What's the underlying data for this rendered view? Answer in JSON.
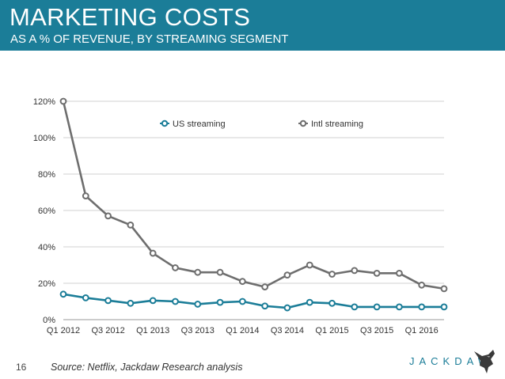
{
  "header": {
    "title": "MARKETING COSTS",
    "subtitle": "AS A % OF REVENUE, BY STREAMING SEGMENT"
  },
  "footer": {
    "page_number": "16",
    "source": "Source: Netflix, Jackdaw Research analysis",
    "logo_text": "JACKDAW"
  },
  "colors": {
    "banner": "#1b7d98",
    "us_series": "#1b7d98",
    "intl_series": "#6e6e6e",
    "grid": "#d0d0d0"
  },
  "chart_data": {
    "type": "line",
    "title": "",
    "xlabel": "",
    "ylabel": "",
    "ylim": [
      0,
      120
    ],
    "yticks": [
      0,
      20,
      40,
      60,
      80,
      100,
      120
    ],
    "ytick_labels": [
      "0%",
      "20%",
      "40%",
      "60%",
      "80%",
      "100%",
      "120%"
    ],
    "categories": [
      "Q1 2012",
      "Q2 2012",
      "Q3 2012",
      "Q4 2012",
      "Q1 2013",
      "Q2 2013",
      "Q3 2013",
      "Q4 2013",
      "Q1 2014",
      "Q2 2014",
      "Q3 2014",
      "Q4 2014",
      "Q1 2015",
      "Q2 2015",
      "Q3 2015",
      "Q4 2015",
      "Q1 2016",
      "Q2 2016"
    ],
    "xtick_labels": [
      "Q1 2012",
      "",
      "Q3 2012",
      "",
      "Q1 2013",
      "",
      "Q3 2013",
      "",
      "Q1 2014",
      "",
      "Q3 2014",
      "",
      "Q1 2015",
      "",
      "Q3 2015",
      "",
      "Q1 2016",
      ""
    ],
    "legend_position": "top",
    "series": [
      {
        "name": "US streaming",
        "values": [
          14,
          12,
          10.5,
          9,
          10.5,
          10,
          8.5,
          9.5,
          10,
          7.5,
          6.5,
          9.5,
          9,
          7,
          7,
          7,
          7,
          7
        ]
      },
      {
        "name": "Intl streaming",
        "values": [
          120,
          68,
          57,
          52,
          36.5,
          28.5,
          26,
          26,
          21,
          18,
          24.5,
          30,
          25,
          27,
          25.5,
          25.5,
          19,
          17
        ]
      }
    ]
  }
}
